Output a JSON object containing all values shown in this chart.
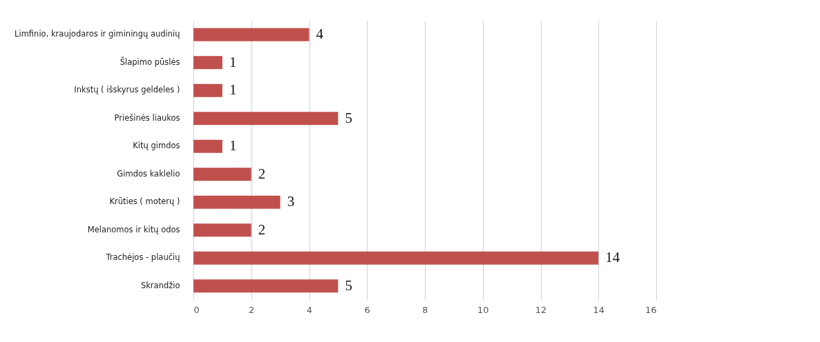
{
  "chart_data": {
    "type": "bar",
    "orientation": "horizontal",
    "categories": [
      "Limfinio, kraujodaros ir giminingų audinių",
      "Šlapimo pūslės",
      "Inkstų ( išskyrus geldeles )",
      "Priešinės liaukos",
      "Kitų gimdos",
      "Gimdos kaklelio",
      "Krūties ( moterų )",
      "Melanomos ir kitų odos",
      "Trachėjos - plaučių",
      "Skrandžio"
    ],
    "values": [
      4,
      1,
      1,
      5,
      1,
      2,
      3,
      2,
      14,
      5
    ],
    "color": "#c0504d",
    "xlim": [
      0,
      16
    ],
    "xticks": [
      0,
      2,
      4,
      6,
      8,
      10,
      12,
      14,
      16
    ],
    "grid": "x",
    "data_labels": true
  }
}
